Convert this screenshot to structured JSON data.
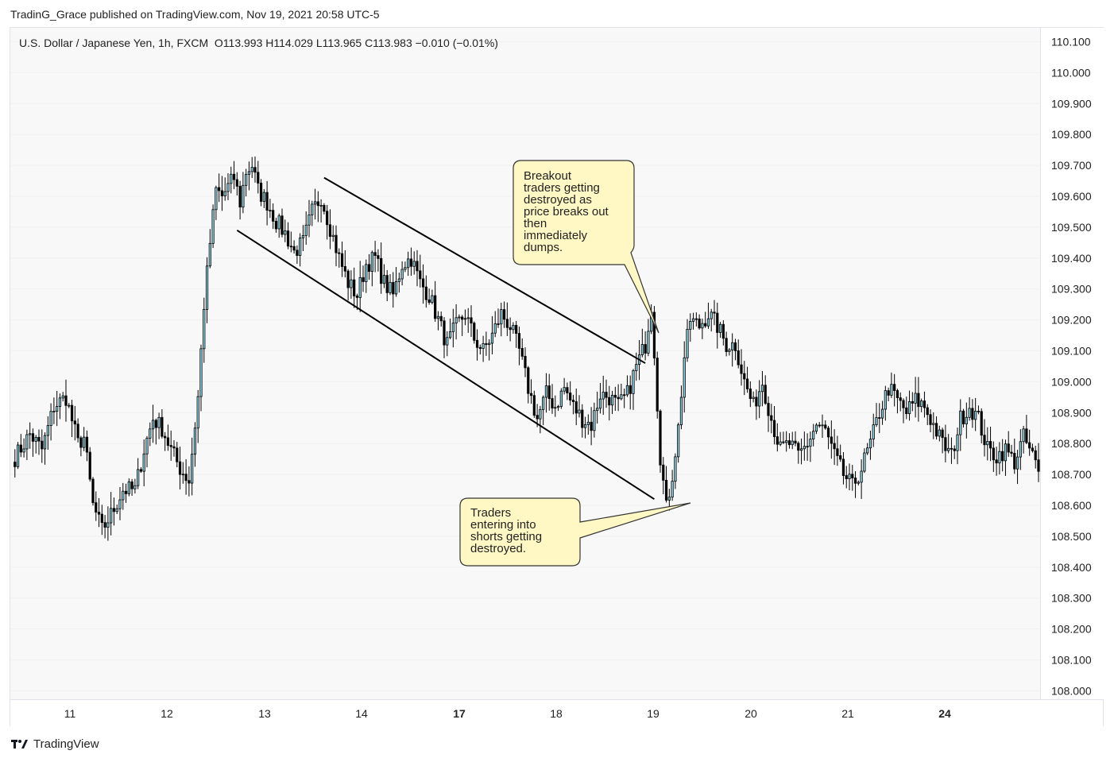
{
  "publish_line": "TradinG_Grace published on TradingView.com, Nov 19, 2021 20:58 UTC-5",
  "legend": {
    "symbol": "U.S. Dollar / Japanese Yen, 1h, FXCM",
    "ohlc": "O113.993  H114.029  L113.965  C113.983  −0.010 (−0.01%)"
  },
  "footer": {
    "brand": "TradingView",
    "logo_icon": "tradingview-logo-icon"
  },
  "annotations": {
    "breakout": "Breakout\ntraders getting\ndestroyed as\nprice breaks out\nthen\nimmediately\ndumps.",
    "shorts": "Traders\nentering into\nshorts getting\ndestroyed."
  },
  "colors": {
    "bull_fill": "#8fd2e6",
    "bear_fill": "#000000",
    "callout_bg": "#fff8c4",
    "plot_bg": "#f8f8f8"
  },
  "chart_data": {
    "type": "candlestick",
    "timeframe": "1h",
    "ylim": [
      107.96,
      110.15
    ],
    "yticks": [
      110.1,
      110.0,
      109.9,
      109.8,
      109.7,
      109.6,
      109.5,
      109.4,
      109.3,
      109.2,
      109.1,
      109.0,
      108.9,
      108.8,
      108.7,
      108.6,
      108.5,
      108.4,
      108.3,
      108.2,
      108.1,
      108.0
    ],
    "ytick_labels": [
      "110.100",
      "110.000",
      "109.900",
      "109.800",
      "109.700",
      "109.600",
      "109.500",
      "109.400",
      "109.300",
      "109.200",
      "109.100",
      "109.000",
      "108.900",
      "108.800",
      "108.700",
      "108.600",
      "108.500",
      "108.400",
      "108.300",
      "108.200",
      "108.100",
      "108.000"
    ],
    "xticks": [
      {
        "label": "11",
        "bold": false
      },
      {
        "label": "12",
        "bold": false
      },
      {
        "label": "13",
        "bold": false
      },
      {
        "label": "14",
        "bold": false
      },
      {
        "label": "17",
        "bold": true
      },
      {
        "label": "18",
        "bold": false
      },
      {
        "label": "19",
        "bold": false
      },
      {
        "label": "20",
        "bold": false
      },
      {
        "label": "21",
        "bold": false
      },
      {
        "label": "24",
        "bold": true
      }
    ],
    "series_note": "hourly OHLC candles, waypoints estimated from chart",
    "waypoints": [
      [
        0,
        108.74
      ],
      [
        6,
        108.83
      ],
      [
        10,
        108.78
      ],
      [
        14,
        108.92
      ],
      [
        18,
        108.95
      ],
      [
        22,
        108.8
      ],
      [
        24,
        108.82
      ],
      [
        27,
        108.6
      ],
      [
        30,
        108.52
      ],
      [
        33,
        108.57
      ],
      [
        37,
        108.65
      ],
      [
        41,
        108.65
      ],
      [
        44,
        108.78
      ],
      [
        47,
        108.88
      ],
      [
        50,
        108.85
      ],
      [
        53,
        108.78
      ],
      [
        56,
        108.72
      ],
      [
        59,
        108.68
      ],
      [
        62,
        108.95
      ],
      [
        64,
        109.25
      ],
      [
        66,
        109.45
      ],
      [
        68,
        109.62
      ],
      [
        70,
        109.6
      ],
      [
        72,
        109.63
      ],
      [
        74,
        109.66
      ],
      [
        76,
        109.58
      ],
      [
        78,
        109.68
      ],
      [
        80,
        109.7
      ],
      [
        82,
        109.62
      ],
      [
        85,
        109.58
      ],
      [
        88,
        109.52
      ],
      [
        91,
        109.48
      ],
      [
        94,
        109.42
      ],
      [
        97,
        109.45
      ],
      [
        100,
        109.55
      ],
      [
        103,
        109.6
      ],
      [
        106,
        109.5
      ],
      [
        109,
        109.4
      ],
      [
        112,
        109.32
      ],
      [
        115,
        109.28
      ],
      [
        118,
        109.38
      ],
      [
        121,
        109.4
      ],
      [
        124,
        109.32
      ],
      [
        127,
        109.28
      ],
      [
        130,
        109.38
      ],
      [
        133,
        109.4
      ],
      [
        136,
        109.32
      ],
      [
        139,
        109.28
      ],
      [
        142,
        109.2
      ],
      [
        145,
        109.12
      ],
      [
        148,
        109.18
      ],
      [
        151,
        109.22
      ],
      [
        154,
        109.14
      ],
      [
        157,
        109.1
      ],
      [
        160,
        109.15
      ],
      [
        163,
        109.22
      ],
      [
        166,
        109.18
      ],
      [
        169,
        109.1
      ],
      [
        172,
        108.98
      ],
      [
        175,
        108.88
      ],
      [
        178,
        108.96
      ],
      [
        181,
        108.92
      ],
      [
        184,
        108.98
      ],
      [
        187,
        108.92
      ],
      [
        190,
        108.88
      ],
      [
        193,
        108.86
      ],
      [
        196,
        108.96
      ],
      [
        199,
        108.95
      ],
      [
        202,
        108.92
      ],
      [
        205,
        108.96
      ],
      [
        208,
        109.05
      ],
      [
        211,
        109.12
      ],
      [
        213,
        109.25
      ],
      [
        214,
        109.1
      ],
      [
        216,
        108.76
      ],
      [
        218,
        108.59
      ],
      [
        220,
        108.7
      ],
      [
        222,
        108.85
      ],
      [
        224,
        109.08
      ],
      [
        226,
        109.2
      ],
      [
        229,
        109.18
      ],
      [
        232,
        109.22
      ],
      [
        235,
        109.18
      ],
      [
        238,
        109.12
      ],
      [
        241,
        109.12
      ],
      [
        244,
        109.0
      ],
      [
        247,
        108.92
      ],
      [
        250,
        109.0
      ],
      [
        253,
        108.88
      ],
      [
        256,
        108.78
      ],
      [
        259,
        108.8
      ],
      [
        262,
        108.76
      ],
      [
        265,
        108.8
      ],
      [
        268,
        108.86
      ],
      [
        271,
        108.84
      ],
      [
        274,
        108.76
      ],
      [
        277,
        108.7
      ],
      [
        280,
        108.66
      ],
      [
        283,
        108.72
      ],
      [
        286,
        108.8
      ],
      [
        289,
        108.9
      ],
      [
        292,
        108.98
      ],
      [
        295,
        108.94
      ],
      [
        298,
        108.9
      ],
      [
        301,
        108.94
      ],
      [
        304,
        108.92
      ],
      [
        307,
        108.86
      ],
      [
        310,
        108.8
      ],
      [
        313,
        108.76
      ],
      [
        316,
        108.88
      ],
      [
        319,
        108.92
      ],
      [
        322,
        108.88
      ],
      [
        325,
        108.78
      ],
      [
        328,
        108.76
      ],
      [
        331,
        108.78
      ],
      [
        334,
        108.74
      ],
      [
        337,
        108.82
      ],
      [
        340,
        108.76
      ],
      [
        342,
        108.71
      ]
    ],
    "trendlines": [
      {
        "from": [
          109.66,
          104
        ],
        "to": [
          109.06,
          211
        ]
      },
      {
        "from": [
          109.49,
          75
        ],
        "to": [
          108.62,
          214
        ]
      }
    ]
  }
}
